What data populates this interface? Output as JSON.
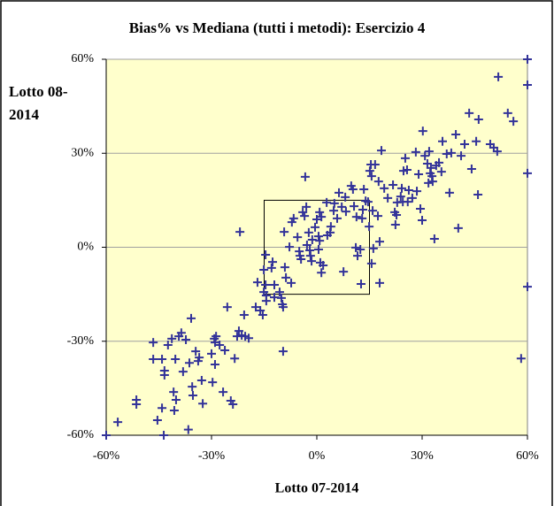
{
  "chart_data": {
    "type": "scatter",
    "title": "Bias% vs Mediana (tutti i metodi): Esercizio 4",
    "x_label": "Lotto 07-2014",
    "y_label": "Lotto 08-2014",
    "color": "#333399",
    "xlim": [
      -60,
      60
    ],
    "ylim": [
      -60,
      60
    ],
    "xticks": [
      {
        "value": -60,
        "label": "-60%"
      },
      {
        "value": -30,
        "label": "-30%"
      },
      {
        "value": 0,
        "label": "0%"
      },
      {
        "value": 30,
        "label": "30%"
      },
      {
        "value": 60,
        "label": "60%"
      }
    ],
    "yticks": [
      {
        "value": -60,
        "label": "-60%"
      },
      {
        "value": -30,
        "label": "-30%"
      },
      {
        "value": 0,
        "label": "0%"
      },
      {
        "value": 30,
        "label": "30%"
      },
      {
        "value": 60,
        "label": "60%"
      }
    ],
    "grid": true,
    "reference_box": {
      "x": [
        -15,
        15
      ],
      "y": [
        -15,
        15
      ]
    },
    "x": [
      -60,
      -56.7,
      -51.4,
      -51.4,
      -46.6,
      -46.6,
      -45.4,
      -44.1,
      -44.1,
      -43.6,
      -43.4,
      -43.4,
      -42.4,
      -41.3,
      -40.8,
      -40.6,
      -40.3,
      -40.1,
      -39.3,
      -38.6,
      -38.1,
      -37.3,
      -36.6,
      -36.3,
      -35.8,
      -35.5,
      -35.3,
      -34.5,
      -33.8,
      -33.5,
      -32.8,
      -32.5,
      -30,
      -29.2,
      -29,
      -28.7,
      -29.7,
      -29,
      -27.7,
      -26.7,
      -26.2,
      -25.5,
      -24.5,
      -23.9,
      -23.4,
      -22.7,
      -22.2,
      -21.4,
      -20.4,
      -19.4,
      -21.9,
      -20.7,
      -17.4,
      -16.9,
      -16.1,
      -15.4,
      -15.1,
      -14.6,
      -14.4,
      -14.4,
      -15.1,
      -14.6,
      -12.9,
      -12.6,
      -12.1,
      -12.1,
      -10.6,
      -10.1,
      -9.8,
      -9.6,
      -9.6,
      -9.3,
      -9.1,
      -8.8,
      -7.8,
      -7.3,
      -7.1,
      -6.6,
      -5.5,
      -5,
      -4.8,
      -4.5,
      -4,
      -3.5,
      -3.3,
      -2.8,
      -2.3,
      -2,
      -1.8,
      -1.5,
      -1.3,
      -3,
      -0.5,
      0,
      0.5,
      0.8,
      1,
      1.3,
      1.8,
      0.5,
      0.8,
      1.3,
      2.8,
      3,
      3.8,
      4,
      4.8,
      5,
      5.8,
      6.3,
      7.1,
      7.6,
      8.1,
      8.3,
      9.8,
      10.3,
      10.6,
      11.3,
      11.1,
      11.6,
      12.4,
      12.6,
      12.9,
      13.1,
      13.4,
      13.9,
      14.6,
      14.9,
      15.1,
      15.4,
      16.6,
      15.6,
      15.9,
      16.1,
      15.6,
      17.6,
      17.9,
      17.9,
      17.4,
      18.4,
      19.2,
      20.2,
      21.7,
      22.2,
      22.7,
      22.9,
      22.4,
      23.9,
      24.2,
      24.5,
      24.7,
      25.2,
      25.7,
      25.9,
      26.2,
      27.2,
      28.2,
      28.5,
      29,
      29.5,
      30,
      30.2,
      30.8,
      31.5,
      31.8,
      32.3,
      32.5,
      32.8,
      33,
      32,
      33.5,
      34,
      34.8,
      35.5,
      35.8,
      37,
      37.8,
      38.3,
      39.6,
      40.3,
      41.1,
      42.1,
      43.4,
      44.1,
      45.4,
      45.9,
      46.1,
      49.4,
      50.4,
      51.4,
      51.7,
      54.4,
      56,
      58.2,
      60,
      60,
      60,
      60
    ],
    "values": [
      -60,
      -55.8,
      -48.7,
      -50.1,
      -30.4,
      -35.7,
      -55.2,
      -35.7,
      -51.3,
      -60,
      -40.8,
      -39.4,
      -31.2,
      -29.2,
      -46.2,
      -52.1,
      -35.7,
      -48.7,
      -28.4,
      -27.3,
      -39.7,
      -29.5,
      -58.2,
      -36.9,
      -22.7,
      -44.5,
      -47.3,
      -33.2,
      -36.3,
      -35.2,
      -42.5,
      -49.9,
      -34,
      -29.2,
      -30.4,
      -28.4,
      -43.1,
      -37.4,
      -31.2,
      -46.2,
      -32.9,
      -19.1,
      -49,
      -50.1,
      -35.5,
      -28.4,
      -26.7,
      -28.1,
      -28.4,
      -29,
      4.9,
      -21.6,
      -19.1,
      -11.2,
      -20.2,
      -21.6,
      -14.3,
      -12,
      -15.4,
      -17.1,
      -7.2,
      -2.4,
      -6.6,
      -4.7,
      -16,
      -12,
      -14.3,
      -16.2,
      -18.2,
      -19.1,
      -33.2,
      4.9,
      -6.4,
      -9.7,
      0.1,
      -11.4,
      8,
      9.2,
      3.2,
      -1.3,
      -2.7,
      -3.8,
      11.2,
      10,
      22.5,
      0.7,
      4.7,
      -1,
      -2.7,
      -4.4,
      2.4,
      12.9,
      6.4,
      8.9,
      -0.7,
      2.1,
      -4.9,
      -8.1,
      -5.8,
      3.5,
      11.2,
      9.7,
      14.3,
      3.8,
      4.7,
      6.6,
      11.7,
      14,
      9.2,
      17.4,
      12.9,
      -7.8,
      16,
      11.4,
      19.6,
      18.5,
      13.1,
      9.7,
      -0.1,
      -2.7,
      -0.7,
      -11.7,
      9.2,
      12,
      18.5,
      14.8,
      14.5,
      6.6,
      24.4,
      26.4,
      26.4,
      22.7,
      11.7,
      -0.4,
      -5.2,
      21,
      -11.4,
      1.8,
      10,
      30.9,
      18.8,
      15.7,
      19.9,
      11.2,
      10.3,
      14.3,
      7.2,
      16.2,
      18.8,
      14.5,
      24.4,
      28.4,
      24.7,
      14.5,
      18.2,
      15.7,
      30.4,
      17.9,
      23.3,
      12.3,
      8.6,
      37.1,
      29.2,
      26.7,
      20.5,
      23.6,
      25.3,
      22.7,
      21,
      30.6,
      2.7,
      26.1,
      27,
      24.1,
      33.8,
      29.8,
      17.4,
      30.1,
      36,
      6.1,
      29.2,
      32.9,
      42.8,
      25,
      33.8,
      16.8,
      40.8,
      32.9,
      31.8,
      30.6,
      54.4,
      42.8,
      40.2,
      -35.5,
      60,
      51.8,
      23.6,
      -12.6
    ]
  }
}
